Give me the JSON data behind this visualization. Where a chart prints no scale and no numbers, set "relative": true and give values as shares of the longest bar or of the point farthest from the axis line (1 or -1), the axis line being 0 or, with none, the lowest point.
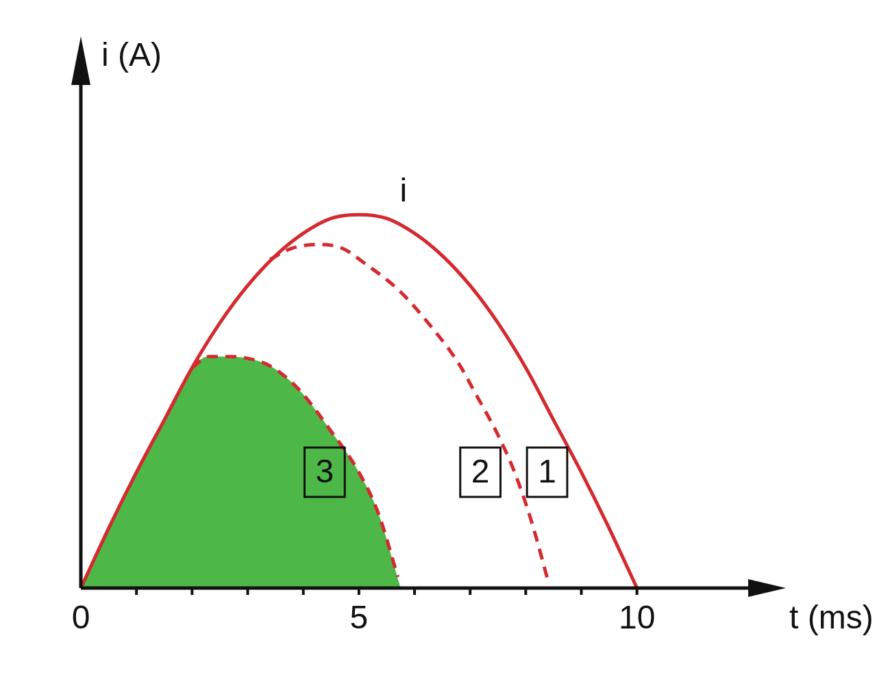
{
  "chart_data": {
    "type": "line",
    "relative": true,
    "xlabel": "t (ms)",
    "ylabel": "i (A)",
    "xlim": [
      0,
      12
    ],
    "xticks": [
      0,
      {
        "value": 1,
        "label": null
      },
      {
        "value": 2,
        "label": null
      },
      {
        "value": 3,
        "label": null
      },
      {
        "value": 4,
        "label": null
      },
      5,
      {
        "value": 6,
        "label": null
      },
      {
        "value": 7,
        "label": null
      },
      {
        "value": 8,
        "label": null
      },
      {
        "value": 9,
        "label": null
      },
      10
    ],
    "legend": false,
    "marker": "none",
    "series": [
      {
        "type": "area",
        "color": "#4db848",
        "x": [
          0,
          0.5,
          1,
          1.5,
          2,
          2.3,
          2.65,
          3,
          3.4,
          3.9,
          4.5,
          5,
          5.35,
          5.75
        ],
        "values": [
          0,
          0.16,
          0.31,
          0.45,
          0.59,
          0.62,
          0.62,
          0.615,
          0.595,
          0.535,
          0.42,
          0.31,
          0.2,
          0
        ]
      },
      {
        "name": "1",
        "color": "#d42a2f",
        "line_style": "solid",
        "x": [
          0,
          0.5,
          1,
          1.5,
          2,
          2.5,
          3,
          3.5,
          4,
          4.5,
          5,
          5.5,
          6,
          6.5,
          7,
          7.5,
          8,
          8.5,
          9,
          9.5,
          10
        ],
        "values": [
          0,
          0.16,
          0.31,
          0.45,
          0.59,
          0.71,
          0.81,
          0.89,
          0.95,
          0.99,
          1,
          0.99,
          0.95,
          0.89,
          0.81,
          0.71,
          0.59,
          0.45,
          0.31,
          0.16,
          0
        ]
      },
      {
        "name": "2",
        "color": "#d42a2f",
        "line_style": "dashed",
        "x": [
          3.4,
          3.8,
          4.25,
          4.7,
          5.1,
          5.7,
          6.3,
          6.8,
          7.1,
          7.5,
          7.8,
          8.1,
          8.4
        ],
        "values": [
          0.88,
          0.91,
          0.92,
          0.91,
          0.87,
          0.8,
          0.7,
          0.6,
          0.52,
          0.41,
          0.31,
          0.18,
          0.02
        ]
      },
      {
        "name": "3",
        "color": "#d42a2f",
        "line_style": "dashed",
        "x": [
          2,
          2.3,
          2.65,
          3,
          3.4,
          3.9,
          4.5,
          5,
          5.35,
          5.7
        ],
        "values": [
          0.59,
          0.62,
          0.62,
          0.615,
          0.595,
          0.535,
          0.42,
          0.31,
          0.2,
          0.03
        ]
      }
    ],
    "annotations": [
      "i"
    ]
  }
}
